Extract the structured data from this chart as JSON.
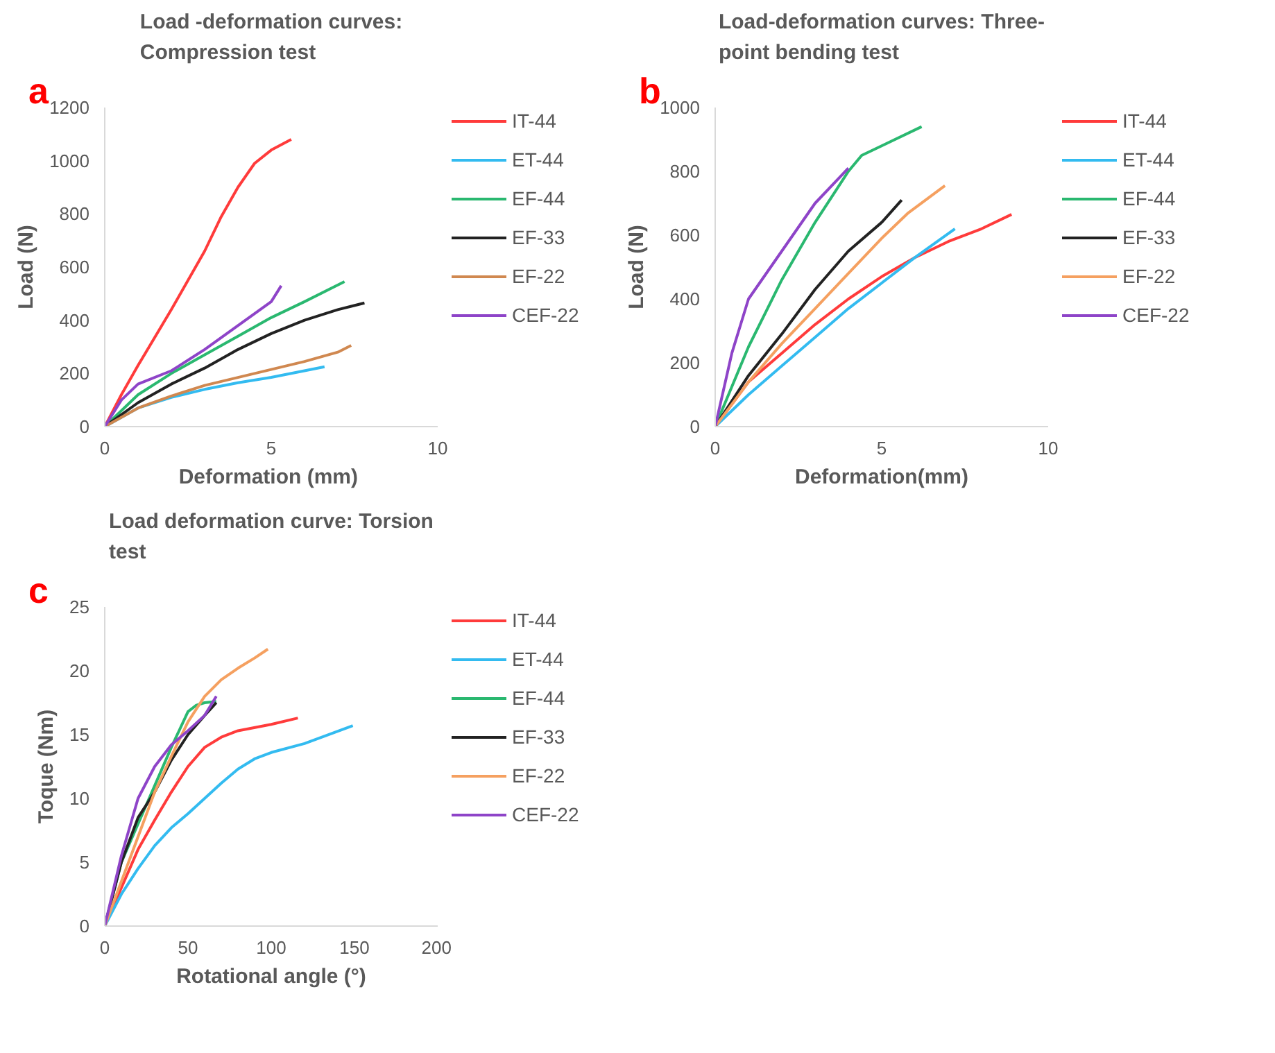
{
  "chart_data": [
    {
      "type": "line",
      "title": "Load -deformation curves:\nCompression test",
      "xlabel": "Deformation  (mm)",
      "ylabel": "Load (N)",
      "annotations": [
        "a"
      ],
      "xlim": [
        0,
        10
      ],
      "xticks": [
        0,
        5,
        10
      ],
      "ylim": [
        0,
        1200
      ],
      "yticks": [
        0,
        200,
        400,
        600,
        800,
        1000,
        1200
      ],
      "grid": false,
      "legend": "right",
      "line_style": "solid",
      "marker": "none",
      "series": [
        {
          "name": "IT-44",
          "color": "#ff3b3b",
          "x": [
            0,
            0.5,
            1,
            2,
            3,
            3.5,
            4,
            4.5,
            5,
            5.6
          ],
          "values": [
            0,
            120,
            230,
            440,
            660,
            790,
            900,
            990,
            1040,
            1080
          ]
        },
        {
          "name": "ET-44",
          "color": "#33bbf0",
          "x": [
            0,
            1,
            2,
            3,
            4,
            5,
            6.6
          ],
          "values": [
            0,
            70,
            110,
            140,
            165,
            185,
            225
          ]
        },
        {
          "name": "EF-44",
          "color": "#2ab870",
          "x": [
            0,
            1,
            2,
            3,
            4,
            5,
            6,
            7.2
          ],
          "values": [
            0,
            120,
            200,
            270,
            340,
            410,
            470,
            545
          ]
        },
        {
          "name": "EF-33",
          "color": "#222222",
          "x": [
            0,
            1,
            2,
            3,
            4,
            5,
            6,
            7,
            7.8
          ],
          "values": [
            0,
            90,
            160,
            220,
            290,
            350,
            400,
            440,
            465
          ]
        },
        {
          "name": "EF-22",
          "color": "#d08850",
          "x": [
            0,
            1,
            2,
            3,
            4,
            5,
            6,
            7,
            7.4
          ],
          "values": [
            0,
            70,
            115,
            155,
            185,
            215,
            245,
            280,
            305
          ]
        },
        {
          "name": "CEF-22",
          "color": "#8e44c8",
          "x": [
            0,
            0.5,
            1,
            2,
            3,
            4,
            5,
            5.3
          ],
          "values": [
            0,
            100,
            160,
            210,
            290,
            380,
            470,
            530
          ]
        }
      ]
    },
    {
      "type": "line",
      "title": "Load-deformation curves: Three-\npoint bending test",
      "xlabel": "Deformation(mm)",
      "ylabel": "Load (N)",
      "annotations": [
        "b"
      ],
      "xlim": [
        0,
        10
      ],
      "xticks": [
        0,
        5,
        10
      ],
      "ylim": [
        0,
        1000
      ],
      "yticks": [
        0,
        200,
        400,
        600,
        800,
        1000
      ],
      "grid": false,
      "legend": "right",
      "line_style": "solid",
      "marker": "none",
      "series": [
        {
          "name": "IT-44",
          "color": "#ff3b3b",
          "x": [
            0,
            1,
            2,
            3,
            4,
            5,
            6,
            7,
            8,
            8.9
          ],
          "values": [
            0,
            140,
            230,
            320,
            400,
            470,
            530,
            580,
            620,
            665
          ]
        },
        {
          "name": "ET-44",
          "color": "#33bbf0",
          "x": [
            0,
            1,
            2,
            3,
            4,
            5,
            6,
            7.2
          ],
          "values": [
            0,
            100,
            190,
            280,
            370,
            450,
            530,
            620
          ]
        },
        {
          "name": "EF-44",
          "color": "#2ab870",
          "x": [
            0,
            1,
            2,
            3,
            4,
            4.4,
            5,
            6.2
          ],
          "values": [
            0,
            250,
            460,
            640,
            800,
            850,
            880,
            940
          ]
        },
        {
          "name": "EF-33",
          "color": "#222222",
          "x": [
            0,
            1,
            2,
            3,
            4,
            5,
            5.6
          ],
          "values": [
            0,
            160,
            290,
            430,
            550,
            640,
            710
          ]
        },
        {
          "name": "EF-22",
          "color": "#f5a060",
          "x": [
            0,
            1,
            2,
            3,
            4,
            5,
            5.8,
            6.9
          ],
          "values": [
            0,
            140,
            260,
            370,
            480,
            590,
            670,
            755
          ]
        },
        {
          "name": "CEF-22",
          "color": "#8e44c8",
          "x": [
            0,
            0.5,
            1,
            2,
            3,
            4
          ],
          "values": [
            0,
            230,
            400,
            550,
            700,
            810
          ]
        }
      ]
    },
    {
      "type": "line",
      "title": "Load deformation curve: Torsion\ntest",
      "xlabel": "Rotational angle (°)",
      "ylabel": "Toque (Nm)",
      "annotations": [
        "c"
      ],
      "xlim": [
        0,
        200
      ],
      "xticks": [
        0,
        50,
        100,
        150,
        200
      ],
      "ylim": [
        0,
        25
      ],
      "yticks": [
        0,
        5,
        10,
        15,
        20,
        25
      ],
      "grid": false,
      "legend": "right",
      "line_style": "solid",
      "marker": "none",
      "series": [
        {
          "name": "IT-44",
          "color": "#ff3b3b",
          "x": [
            0,
            10,
            20,
            30,
            40,
            50,
            60,
            70,
            80,
            100,
            116
          ],
          "values": [
            0,
            3,
            6,
            8.3,
            10.5,
            12.5,
            14,
            14.8,
            15.3,
            15.8,
            16.3
          ]
        },
        {
          "name": "ET-44",
          "color": "#33bbf0",
          "x": [
            0,
            10,
            20,
            30,
            40,
            50,
            60,
            70,
            80,
            90,
            100,
            120,
            149
          ],
          "values": [
            0,
            2.5,
            4.5,
            6.3,
            7.7,
            8.8,
            10,
            11.2,
            12.3,
            13.1,
            13.6,
            14.3,
            15.7
          ]
        },
        {
          "name": "EF-44",
          "color": "#2ab870",
          "x": [
            0,
            10,
            20,
            30,
            40,
            50,
            55,
            60,
            67
          ],
          "values": [
            0,
            5,
            8,
            11,
            14,
            16.8,
            17.3,
            17.5,
            17.6
          ]
        },
        {
          "name": "EF-33",
          "color": "#222222",
          "x": [
            0,
            10,
            20,
            30,
            40,
            50,
            60,
            67
          ],
          "values": [
            0,
            5,
            8.5,
            10.5,
            13,
            15,
            16.5,
            17.5
          ]
        },
        {
          "name": "EF-22",
          "color": "#f5a060",
          "x": [
            0,
            10,
            20,
            30,
            40,
            50,
            60,
            70,
            80,
            90,
            98
          ],
          "values": [
            0,
            3.5,
            7,
            10.5,
            13.3,
            16,
            18,
            19.3,
            20.2,
            21,
            21.7
          ]
        },
        {
          "name": "CEF-22",
          "color": "#8e44c8",
          "x": [
            0,
            10,
            20,
            30,
            40,
            50,
            60,
            67
          ],
          "values": [
            0,
            5.5,
            10,
            12.5,
            14.2,
            15.3,
            16.5,
            18
          ]
        }
      ]
    }
  ]
}
